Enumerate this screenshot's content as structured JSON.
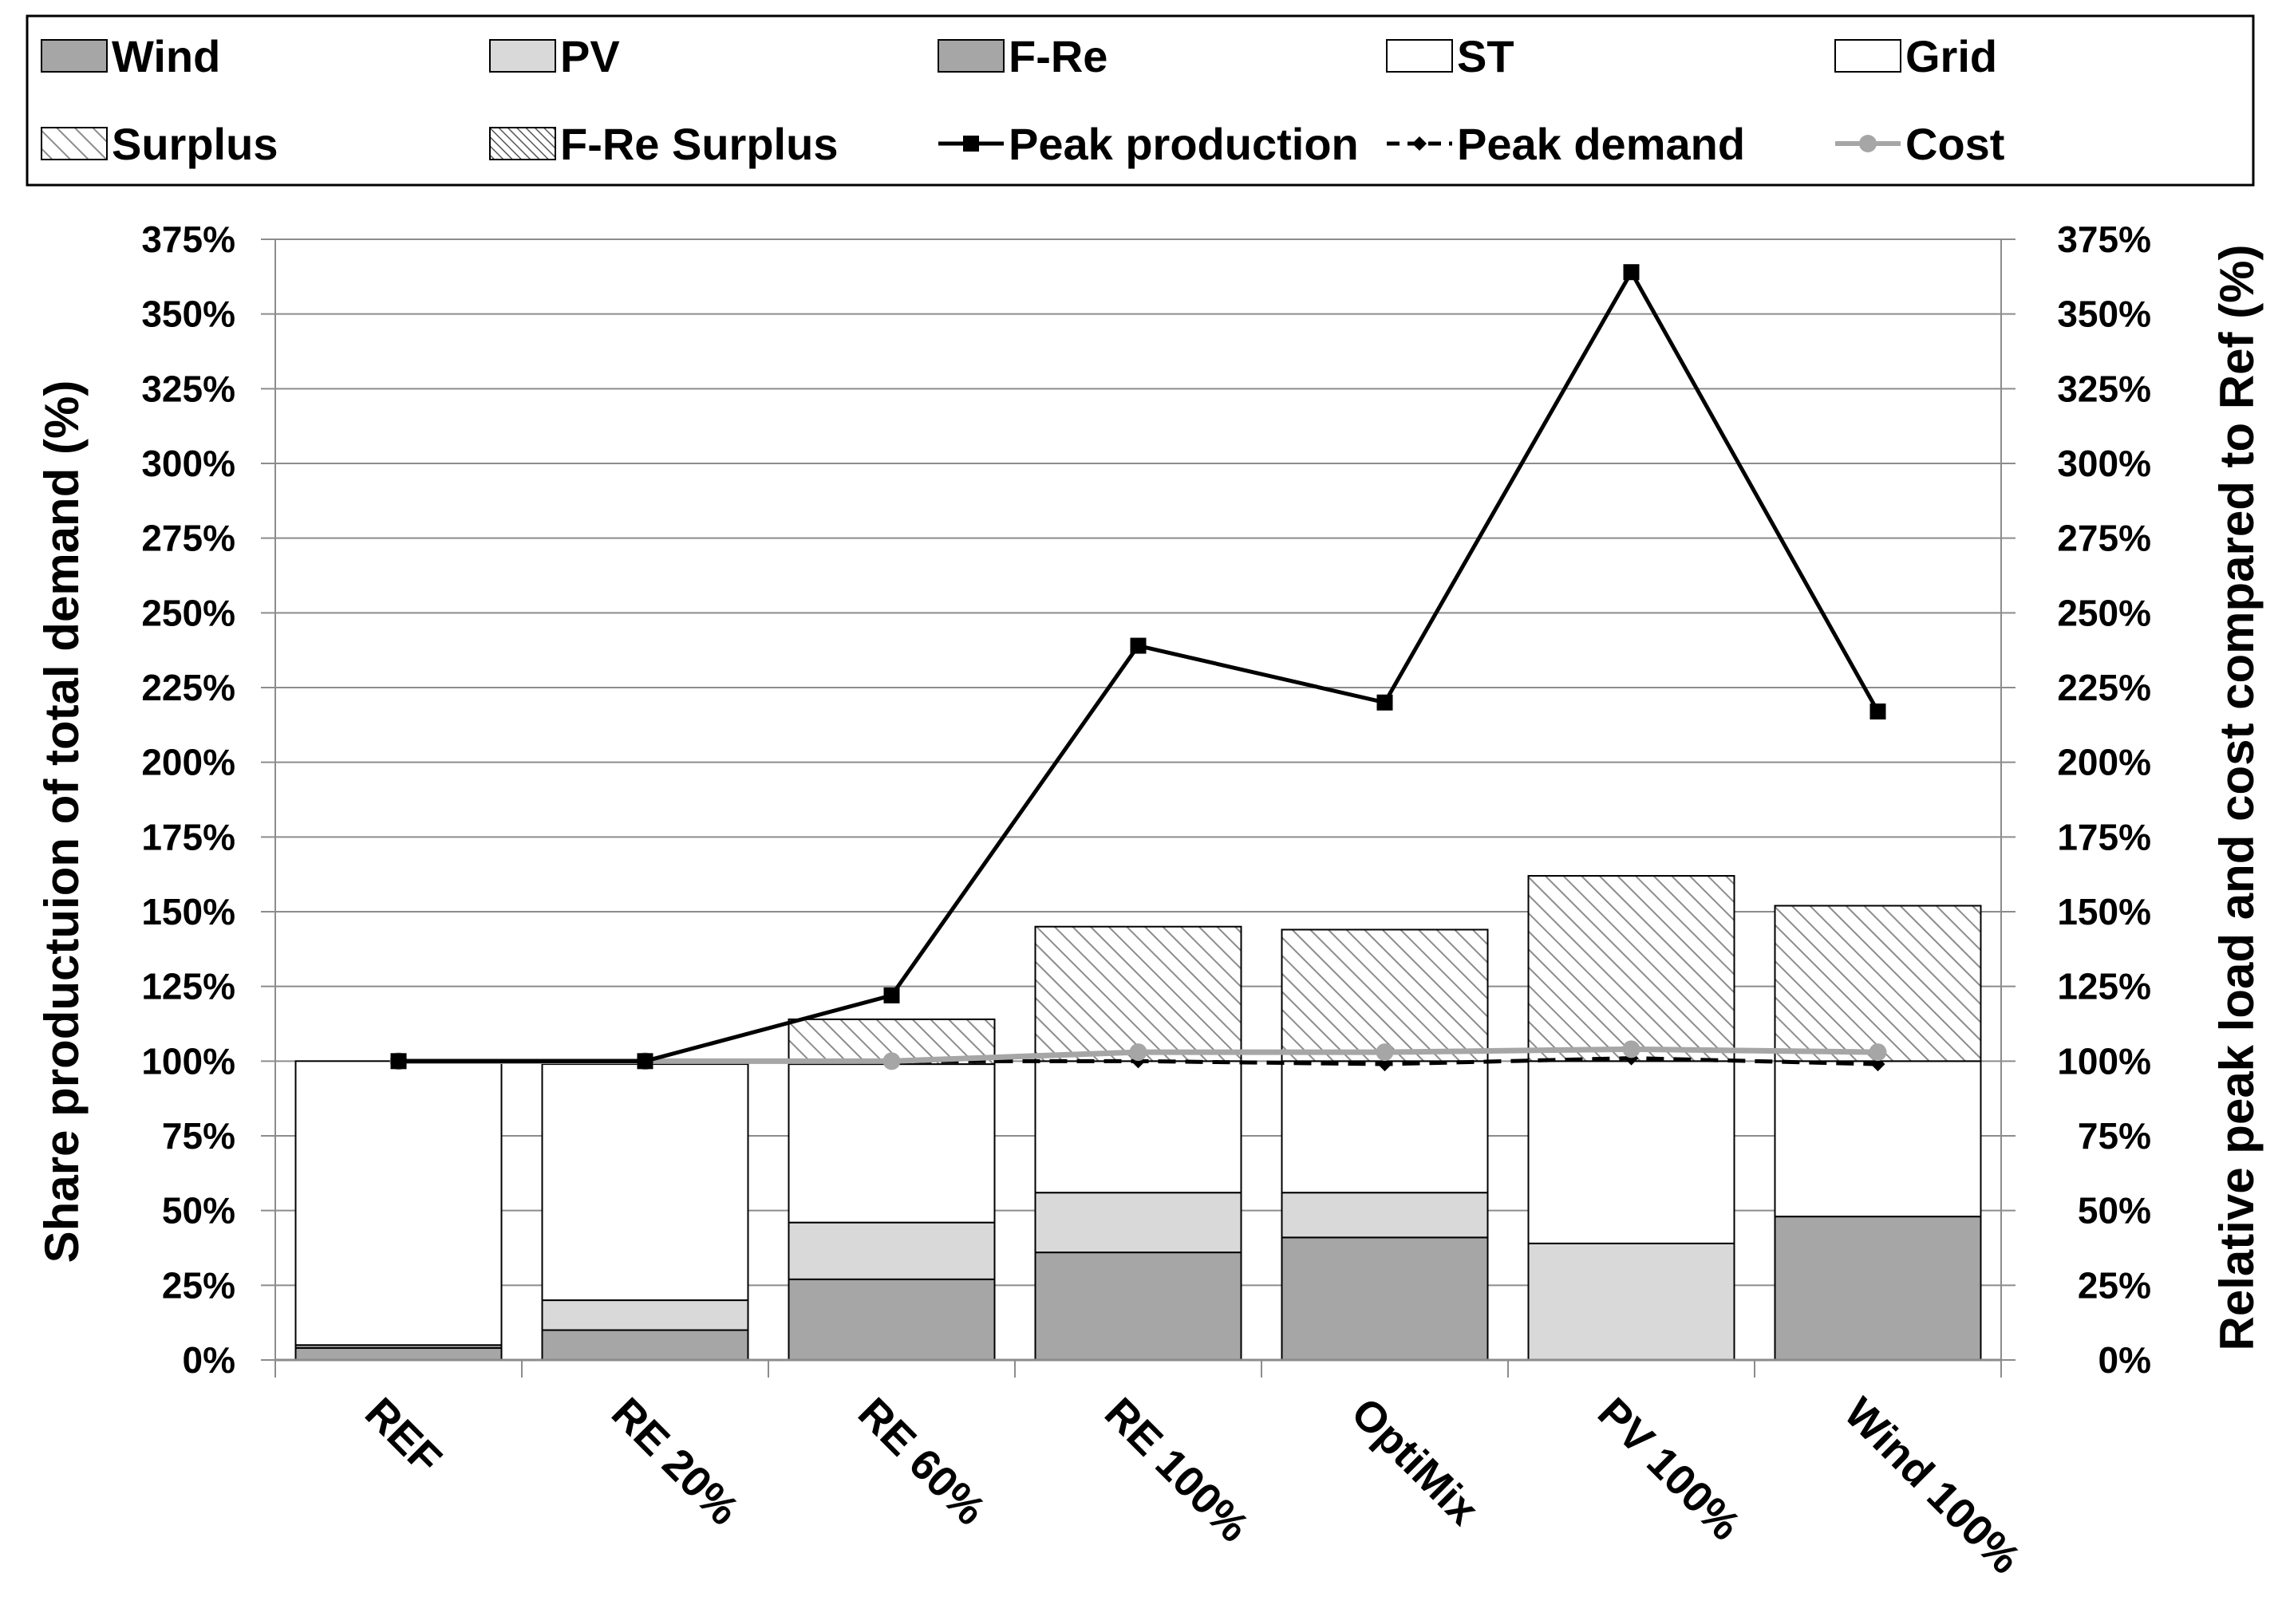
{
  "chart_data": {
    "type": "bar",
    "stacked": true,
    "categories": [
      "REF",
      "RE 20%",
      "RE 60%",
      "RE 100%",
      "OptiMix",
      "PV 100%",
      "Wind 100%"
    ],
    "y_left": {
      "label": "Share productuion of total demand (%)",
      "ylim": [
        0,
        375
      ],
      "ticks": [
        0,
        25,
        50,
        75,
        100,
        125,
        150,
        175,
        200,
        225,
        250,
        275,
        300,
        325,
        350,
        375
      ],
      "tick_labels": [
        "0%",
        "25%",
        "50%",
        "75%",
        "100%",
        "125%",
        "150%",
        "175%",
        "200%",
        "225%",
        "250%",
        "275%",
        "300%",
        "325%",
        "350%",
        "375%"
      ]
    },
    "y_right": {
      "label": "Relative peak load and cost compared to Ref (%)",
      "ylim": [
        0,
        375
      ],
      "ticks": [
        0,
        25,
        50,
        75,
        100,
        125,
        150,
        175,
        200,
        225,
        250,
        275,
        300,
        325,
        350,
        375
      ],
      "tick_labels": [
        "0%",
        "25%",
        "50%",
        "75%",
        "100%",
        "125%",
        "150%",
        "175%",
        "200%",
        "225%",
        "250%",
        "275%",
        "300%",
        "325%",
        "350%",
        "375%"
      ]
    },
    "grid": true,
    "legend_position": "top",
    "series": [
      {
        "name": "Wind",
        "kind": "bar",
        "fill": "#a6a6a6",
        "pattern": "solid",
        "values": [
          4,
          10,
          27,
          36,
          41,
          0,
          48
        ]
      },
      {
        "name": "PV",
        "kind": "bar",
        "fill": "#d9d9d9",
        "pattern": "solid",
        "values": [
          0,
          10,
          19,
          20,
          15,
          39,
          0
        ]
      },
      {
        "name": "F-Re",
        "kind": "bar",
        "fill": "#a6a6a6",
        "pattern": "solid",
        "values": [
          1,
          0,
          0,
          0,
          0,
          0,
          0
        ]
      },
      {
        "name": "ST",
        "kind": "bar",
        "fill": "#ffffff",
        "pattern": "solid",
        "values": [
          0,
          0,
          0,
          0,
          0,
          0,
          0
        ]
      },
      {
        "name": "Grid",
        "kind": "bar",
        "fill": "#ffffff",
        "pattern": "solid",
        "values": [
          95,
          79,
          53,
          44,
          44,
          61,
          52
        ]
      },
      {
        "name": "Surplus",
        "kind": "bar",
        "fill": "#ffffff",
        "pattern": "hatch-diag",
        "values": [
          0,
          0,
          15,
          45,
          44,
          62,
          52
        ]
      },
      {
        "name": "F-Re Surplus",
        "kind": "bar",
        "fill": "#ffffff",
        "pattern": "hatch-dense",
        "values": [
          0,
          0,
          0,
          0,
          0,
          0,
          0
        ]
      },
      {
        "name": "Peak production",
        "kind": "line",
        "color": "#000000",
        "marker": "square",
        "dash": "solid",
        "values": [
          100,
          100,
          122,
          239,
          220,
          364,
          217
        ]
      },
      {
        "name": "Peak demand",
        "kind": "line",
        "color": "#000000",
        "marker": "diamond",
        "dash": "dashed",
        "values": [
          100,
          100,
          100,
          100,
          99,
          101,
          99
        ]
      },
      {
        "name": "Cost",
        "kind": "line",
        "color": "#a6a6a6",
        "marker": "circle",
        "dash": "solid",
        "values": [
          100,
          100,
          100,
          103,
          103,
          104,
          103
        ]
      }
    ]
  }
}
